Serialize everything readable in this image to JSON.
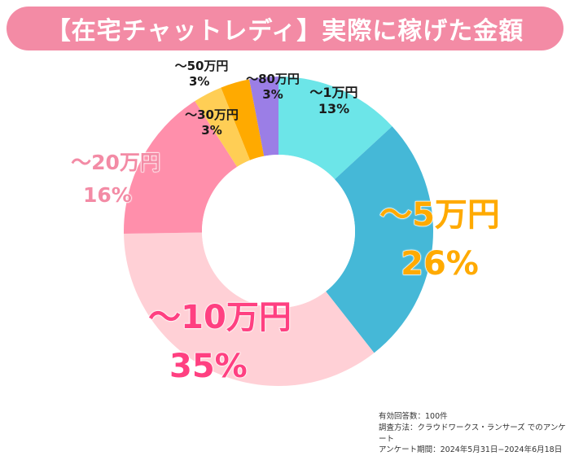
{
  "title": "【在宅チャットレディ】実際に稼げた金額",
  "colors": {
    "title_bg": "#F38BA5",
    "title_text": "#FFFFFF"
  },
  "chart_data": {
    "type": "pie",
    "variant": "donut",
    "title": "【在宅チャットレディ】実際に稼げた金額",
    "unit": "%",
    "start": "top, clockwise",
    "slices": [
      {
        "label": "〜1万円",
        "value": 13,
        "display": "13%",
        "color": "#6CE5E8",
        "label_color": "#1a1a1a"
      },
      {
        "label": "〜5万円",
        "value": 26,
        "display": "26%",
        "color": "#45B8D7",
        "label_color": "#FFAA00"
      },
      {
        "label": "〜10万円",
        "value": 35,
        "display": "35%",
        "color": "#FFD0D6",
        "label_color": "#FF4081"
      },
      {
        "label": "〜20万円",
        "value": 16,
        "display": "16%",
        "color": "#FF8FAB",
        "label_color": "#F38BA5"
      },
      {
        "label": "〜30万円",
        "value": 3,
        "display": "3%",
        "color": "#FFCE55",
        "label_color": "#1a1a1a"
      },
      {
        "label": "〜50万円",
        "value": 3,
        "display": "3%",
        "color": "#FFAA00",
        "label_color": "#1a1a1a"
      },
      {
        "label": "〜80万円",
        "value": 3,
        "display": "3%",
        "color": "#9B7EE6",
        "label_color": "#1a1a1a"
      }
    ]
  },
  "footnote": {
    "line1": "有効回答数：100件",
    "line2": "調査方法：クラウドワークス・ランサーズ でのアンケート",
    "line3": "アンケート期間：2024年5月31日−2024年6月18日"
  }
}
